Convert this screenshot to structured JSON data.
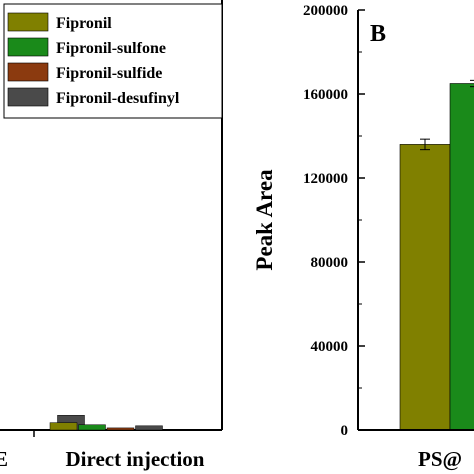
{
  "legend": {
    "placement": "top-left",
    "entries": [
      {
        "name": "Fipronil",
        "color": "#808000"
      },
      {
        "name": "Fipronil-sulfone",
        "color": "#1a8a1a"
      },
      {
        "name": "Fipronil-sulfide",
        "color": "#8b3a0f"
      },
      {
        "name": "Fipronil-desufinyl",
        "color": "#4a4a4a"
      }
    ]
  },
  "chart_data": [
    {
      "type": "bar",
      "panel_label": "",
      "categories": [
        "E",
        "Direct injection"
      ],
      "series": [
        {
          "name": "Fipronil",
          "color": "#808000",
          "values": [
            null,
            3500
          ]
        },
        {
          "name": "Fipronil-sulfone",
          "color": "#1a8a1a",
          "values": [
            null,
            2500
          ]
        },
        {
          "name": "Fipronil-sulfide",
          "color": "#8b3a0f",
          "values": [
            null,
            1000
          ]
        },
        {
          "name": "Fipronil-desufinyl",
          "color": "#4a4a4a",
          "values": [
            7000,
            2000
          ]
        }
      ],
      "xlabel": "",
      "ylabel": "",
      "title": "",
      "partially_cropped": true
    },
    {
      "type": "bar",
      "panel_label": "B",
      "categories": [
        "PS@"
      ],
      "series": [
        {
          "name": "Fipronil",
          "color": "#808000",
          "values": [
            136000
          ],
          "errors": [
            2500
          ]
        },
        {
          "name": "Fipronil-sulfone",
          "color": "#1a8a1a",
          "values": [
            165000
          ],
          "errors": [
            1500
          ]
        }
      ],
      "ylabel": "Peak Area",
      "xlabel": "",
      "ylim": [
        0,
        200000
      ],
      "yticks": [
        0,
        40000,
        80000,
        120000,
        160000,
        200000
      ],
      "ytick_labels": [
        "0",
        "40000",
        "80000",
        "120000",
        "160000",
        "200000"
      ],
      "partially_cropped": true
    }
  ]
}
